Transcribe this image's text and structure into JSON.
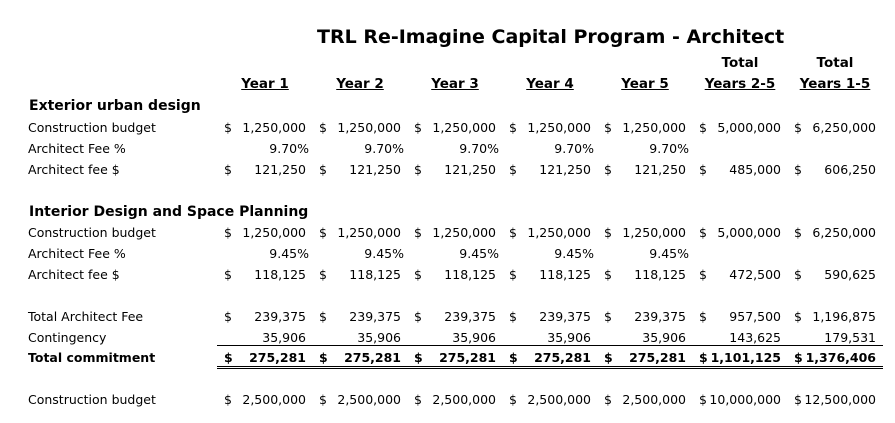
{
  "title": "TRL Re-Imagine Capital Program - Architect",
  "headers": {
    "year1": "Year 1",
    "year2": "Year 2",
    "year3": "Year 3",
    "year4": "Year 4",
    "year5": "Year 5",
    "total25_top": "Total",
    "total25": "Years 2-5",
    "total15_top": "Total",
    "total15": "Years 1-5"
  },
  "currency": "$",
  "exterior": {
    "title": "Exterior urban design",
    "construction_label": "Construction budget",
    "construction": [
      "1,250,000",
      "1,250,000",
      "1,250,000",
      "1,250,000",
      "1,250,000",
      "5,000,000",
      "6,250,000"
    ],
    "fee_pct_label": "Architect Fee %",
    "fee_pct": [
      "9.70%",
      "9.70%",
      "9.70%",
      "9.70%",
      "9.70%"
    ],
    "fee_label": "Architect fee $",
    "fee": [
      "121,250",
      "121,250",
      "121,250",
      "121,250",
      "121,250",
      "485,000",
      "606,250"
    ]
  },
  "interior": {
    "title": "Interior Design and Space Planning",
    "construction_label": "Construction budget",
    "construction": [
      "1,250,000",
      "1,250,000",
      "1,250,000",
      "1,250,000",
      "1,250,000",
      "5,000,000",
      "6,250,000"
    ],
    "fee_pct_label": "Architect Fee %",
    "fee_pct": [
      "9.45%",
      "9.45%",
      "9.45%",
      "9.45%",
      "9.45%"
    ],
    "fee_label": "Architect fee $",
    "fee": [
      "118,125",
      "118,125",
      "118,125",
      "118,125",
      "118,125",
      "472,500",
      "590,625"
    ]
  },
  "summary": {
    "total_fee_label": "Total Architect Fee",
    "total_fee": [
      "239,375",
      "239,375",
      "239,375",
      "239,375",
      "239,375",
      "957,500",
      "1,196,875"
    ],
    "contingency_label": "Contingency",
    "contingency": [
      "35,906",
      "35,906",
      "35,906",
      "35,906",
      "35,906",
      "143,625",
      "179,531"
    ],
    "commitment_label": "Total commitment",
    "commitment": [
      "275,281",
      "275,281",
      "275,281",
      "275,281",
      "275,281",
      "1,101,125",
      "1,376,406"
    ]
  },
  "grand": {
    "construction_label": "Construction budget",
    "construction": [
      "2,500,000",
      "2,500,000",
      "2,500,000",
      "2,500,000",
      "2,500,000",
      "10,000,000",
      "12,500,000"
    ]
  }
}
